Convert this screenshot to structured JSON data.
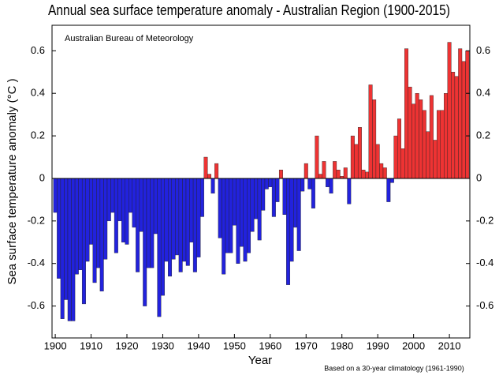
{
  "chart_data": {
    "type": "bar",
    "title": "Annual sea surface temperature anomaly - Australian Region (1900-2015)",
    "annotation": "Australian Bureau of Meteorology",
    "footnote": "Based on a 30-year climatology (1961-1990)",
    "xlabel": "Year",
    "ylabel": "Sea surface temperature anomaly (°C )",
    "positive_color": "#ee3333",
    "negative_color": "#2222dd",
    "x": [
      1900,
      1901,
      1902,
      1903,
      1904,
      1905,
      1906,
      1907,
      1908,
      1909,
      1910,
      1911,
      1912,
      1913,
      1914,
      1915,
      1916,
      1917,
      1918,
      1919,
      1920,
      1921,
      1922,
      1923,
      1924,
      1925,
      1926,
      1927,
      1928,
      1929,
      1930,
      1931,
      1932,
      1933,
      1934,
      1935,
      1936,
      1937,
      1938,
      1939,
      1940,
      1941,
      1942,
      1943,
      1944,
      1945,
      1946,
      1947,
      1948,
      1949,
      1950,
      1951,
      1952,
      1953,
      1954,
      1955,
      1956,
      1957,
      1958,
      1959,
      1960,
      1961,
      1962,
      1963,
      1964,
      1965,
      1966,
      1967,
      1968,
      1969,
      1970,
      1971,
      1972,
      1973,
      1974,
      1975,
      1976,
      1977,
      1978,
      1979,
      1980,
      1981,
      1982,
      1983,
      1984,
      1985,
      1986,
      1987,
      1988,
      1989,
      1990,
      1991,
      1992,
      1993,
      1994,
      1995,
      1996,
      1997,
      1998,
      1999,
      2000,
      2001,
      2002,
      2003,
      2004,
      2005,
      2006,
      2007,
      2008,
      2009,
      2010,
      2011,
      2012,
      2013,
      2014,
      2015
    ],
    "values": [
      -0.16,
      -0.47,
      -0.66,
      -0.57,
      -0.67,
      -0.67,
      -0.45,
      -0.43,
      -0.59,
      -0.39,
      -0.31,
      -0.49,
      -0.42,
      -0.53,
      -0.38,
      -0.2,
      -0.16,
      -0.35,
      -0.2,
      -0.3,
      -0.31,
      -0.16,
      -0.23,
      -0.44,
      -0.25,
      -0.6,
      -0.42,
      -0.42,
      -0.26,
      -0.65,
      -0.55,
      -0.39,
      -0.46,
      -0.38,
      -0.36,
      -0.44,
      -0.39,
      -0.41,
      -0.3,
      -0.44,
      -0.37,
      -0.18,
      0.1,
      0.02,
      -0.07,
      0.07,
      -0.28,
      -0.45,
      -0.35,
      -0.35,
      -0.22,
      -0.4,
      -0.32,
      -0.39,
      -0.35,
      -0.25,
      -0.19,
      -0.29,
      -0.15,
      -0.05,
      -0.04,
      -0.18,
      -0.11,
      0.04,
      -0.17,
      -0.5,
      -0.39,
      -0.23,
      -0.34,
      -0.06,
      0.07,
      -0.05,
      -0.14,
      0.2,
      0.02,
      0.08,
      -0.04,
      -0.07,
      0.08,
      0.04,
      0.01,
      0.05,
      -0.12,
      0.2,
      0.16,
      0.24,
      0.04,
      0.03,
      0.44,
      0.37,
      0.16,
      0.07,
      0.05,
      -0.11,
      -0.02,
      0.2,
      0.28,
      0.14,
      0.61,
      0.43,
      0.35,
      0.4,
      0.37,
      0.32,
      0.22,
      0.39,
      0.18,
      0.32,
      0.32,
      0.4,
      0.64,
      0.5,
      0.48,
      0.61,
      0.55,
      0.6
    ],
    "xlim": [
      1899.1,
      2015.7
    ],
    "xticks": [
      1900,
      1910,
      1920,
      1930,
      1940,
      1950,
      1960,
      1970,
      1980,
      1990,
      2000,
      2010
    ],
    "ylim": [
      -0.75,
      0.72
    ],
    "yticks": [
      -0.6,
      -0.4,
      -0.2,
      0,
      0.2,
      0.4,
      0.6
    ]
  }
}
